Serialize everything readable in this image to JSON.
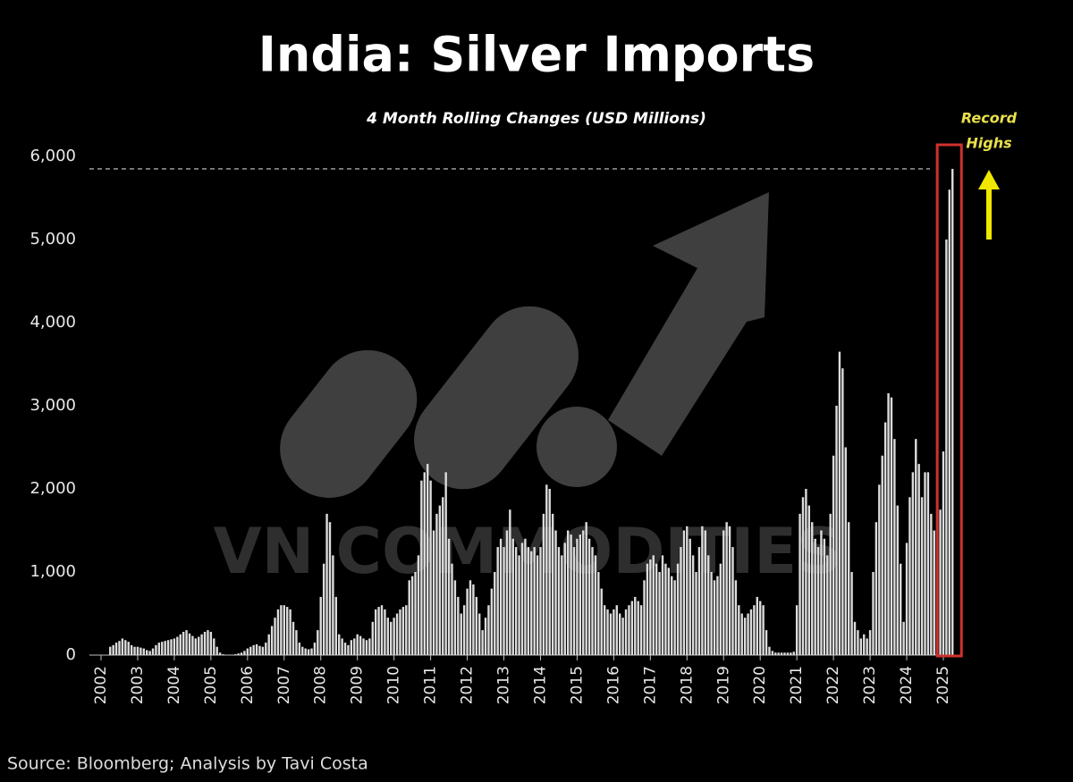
{
  "chart_data": {
    "type": "bar",
    "title": "India: Silver Imports",
    "subtitle": "4 Month Rolling Changes (USD Millions)",
    "source": "Source: Bloomberg; Analysis by Tavi Costa",
    "annotation": [
      "Record",
      "Highs"
    ],
    "watermark": "VN COMMODITIES",
    "color": "#dcdcdc",
    "categories": [
      "2002",
      null,
      null,
      null,
      null,
      null,
      null,
      null,
      null,
      null,
      null,
      null,
      "2003",
      null,
      null,
      null,
      null,
      null,
      null,
      null,
      null,
      null,
      null,
      null,
      "2004",
      null,
      null,
      null,
      null,
      null,
      null,
      null,
      null,
      null,
      null,
      null,
      "2005",
      null,
      null,
      null,
      null,
      null,
      null,
      null,
      null,
      null,
      null,
      null,
      "2006",
      null,
      null,
      null,
      null,
      null,
      null,
      null,
      null,
      null,
      null,
      null,
      "2007",
      null,
      null,
      null,
      null,
      null,
      null,
      null,
      null,
      null,
      null,
      null,
      "2008",
      null,
      null,
      null,
      null,
      null,
      null,
      null,
      null,
      null,
      null,
      null,
      "2009",
      null,
      null,
      null,
      null,
      null,
      null,
      null,
      null,
      null,
      null,
      null,
      "2010",
      null,
      null,
      null,
      null,
      null,
      null,
      null,
      null,
      null,
      null,
      null,
      "2011",
      null,
      null,
      null,
      null,
      null,
      null,
      null,
      null,
      null,
      null,
      null,
      "2012",
      null,
      null,
      null,
      null,
      null,
      null,
      null,
      null,
      null,
      null,
      null,
      "2013",
      null,
      null,
      null,
      null,
      null,
      null,
      null,
      null,
      null,
      null,
      null,
      "2014",
      null,
      null,
      null,
      null,
      null,
      null,
      null,
      null,
      null,
      null,
      null,
      "2015",
      null,
      null,
      null,
      null,
      null,
      null,
      null,
      null,
      null,
      null,
      null,
      "2016",
      null,
      null,
      null,
      null,
      null,
      null,
      null,
      null,
      null,
      null,
      null,
      "2017",
      null,
      null,
      null,
      null,
      null,
      null,
      null,
      null,
      null,
      null,
      null,
      "2018",
      null,
      null,
      null,
      null,
      null,
      null,
      null,
      null,
      null,
      null,
      null,
      "2019",
      null,
      null,
      null,
      null,
      null,
      null,
      null,
      null,
      null,
      null,
      null,
      "2020",
      null,
      null,
      null,
      null,
      null,
      null,
      null,
      null,
      null,
      null,
      null,
      "2021",
      null,
      null,
      null,
      null,
      null,
      null,
      null,
      null,
      null,
      null,
      null,
      "2022",
      null,
      null,
      null,
      null,
      null,
      null,
      null,
      null,
      null,
      null,
      null,
      "2023",
      null,
      null,
      null,
      null,
      null,
      null,
      null,
      null,
      null,
      null,
      null,
      "2024",
      null,
      null,
      null,
      null,
      null,
      null,
      null,
      null,
      null,
      null,
      null,
      "2025",
      null,
      null,
      null
    ],
    "values": [
      0,
      0,
      0,
      100,
      120,
      150,
      170,
      200,
      180,
      160,
      120,
      100,
      100,
      90,
      80,
      60,
      50,
      80,
      120,
      150,
      160,
      170,
      180,
      190,
      200,
      220,
      250,
      280,
      300,
      260,
      230,
      200,
      220,
      250,
      280,
      300,
      280,
      200,
      100,
      30,
      10,
      5,
      5,
      5,
      10,
      20,
      30,
      50,
      80,
      100,
      120,
      130,
      110,
      100,
      150,
      250,
      350,
      450,
      550,
      600,
      600,
      580,
      550,
      400,
      300,
      150,
      100,
      80,
      70,
      80,
      150,
      300,
      700,
      1100,
      1700,
      1600,
      1200,
      700,
      250,
      200,
      150,
      120,
      180,
      200,
      250,
      230,
      200,
      180,
      200,
      400,
      550,
      580,
      600,
      550,
      450,
      400,
      450,
      500,
      550,
      580,
      600,
      900,
      950,
      1000,
      1200,
      2100,
      2200,
      2300,
      2100,
      1500,
      1700,
      1800,
      1900,
      2200,
      1400,
      1100,
      900,
      700,
      500,
      600,
      800,
      900,
      850,
      700,
      500,
      300,
      450,
      600,
      800,
      1000,
      1300,
      1400,
      1300,
      1500,
      1750,
      1400,
      1300,
      1200,
      1350,
      1400,
      1300,
      1250,
      1300,
      1200,
      1300,
      1700,
      2050,
      2000,
      1700,
      1500,
      1300,
      1200,
      1350,
      1500,
      1450,
      1300,
      1400,
      1450,
      1500,
      1600,
      1400,
      1300,
      1200,
      1000,
      800,
      600,
      550,
      500,
      550,
      600,
      500,
      450,
      550,
      600,
      650,
      700,
      650,
      600,
      900,
      1100,
      1150,
      1200,
      1100,
      1000,
      1200,
      1100,
      1050,
      950,
      900,
      1100,
      1300,
      1500,
      1550,
      1400,
      1200,
      1000,
      1300,
      1550,
      1500,
      1200,
      1000,
      900,
      950,
      1100,
      1500,
      1600,
      1550,
      1300,
      900,
      600,
      500,
      450,
      500,
      550,
      600,
      700,
      650,
      600,
      300,
      100,
      50,
      30,
      30,
      30,
      30,
      30,
      30,
      40,
      600,
      1700,
      1900,
      2000,
      1800,
      1600,
      1400,
      1300,
      1500,
      1400,
      1200,
      1700,
      2400,
      3000,
      3650,
      3450,
      2500,
      1600,
      1000,
      400,
      300,
      200,
      250,
      200,
      300,
      1000,
      1600,
      2050,
      2400,
      2800,
      3150,
      3100,
      2600,
      1800,
      1100,
      400,
      1350,
      1900,
      2200,
      2600,
      2300,
      1900,
      2200,
      2200,
      1700,
      1500,
      1100,
      1750,
      2450,
      5000,
      5600,
      5850
    ],
    "ylim": [
      0,
      6000
    ],
    "yticks": [
      0,
      {
        "value": 1000,
        "label": "1,000"
      },
      {
        "value": 2000,
        "label": "2,000"
      },
      {
        "value": 3000,
        "label": "3,000"
      },
      {
        "value": 4000,
        "label": "4,000"
      },
      {
        "value": 5000,
        "label": "5,000"
      },
      {
        "value": 6000,
        "label": "6,000"
      }
    ],
    "grid": false
  }
}
